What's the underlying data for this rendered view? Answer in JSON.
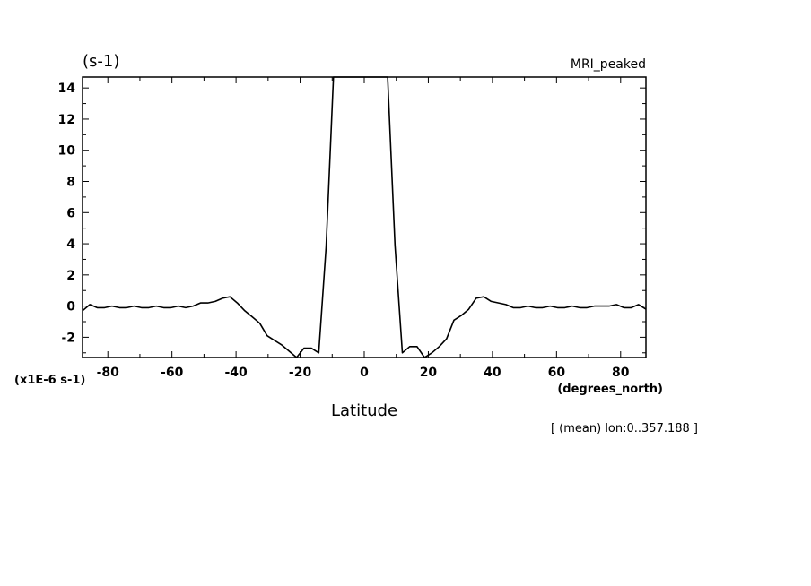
{
  "chart_data": {
    "type": "line",
    "title": "MRI_peaked",
    "unit_label": "(s-1)",
    "scale_label": "(x1E-6 s-1)",
    "xlabel": "Latitude",
    "x_unit": "(degrees_north)",
    "annotation": "[ (mean) lon:0..357.188 ]",
    "xlim": [
      -87.9,
      87.9
    ],
    "ylim": [
      -3.3,
      14.7
    ],
    "x_ticks": [
      -80,
      -60,
      -40,
      -20,
      0,
      20,
      40,
      60,
      80
    ],
    "y_ticks": [
      -2,
      0,
      2,
      4,
      6,
      8,
      10,
      12,
      14
    ],
    "x_tick_labels": [
      "-80",
      "-60",
      "-40",
      "-20",
      "0",
      "20",
      "40",
      "60",
      "80"
    ],
    "y_tick_labels": [
      "-2",
      "0",
      "2",
      "4",
      "6",
      "8",
      "10",
      "12",
      "14"
    ],
    "grid": false,
    "series": [
      {
        "x": [
          -87.9,
          -85.6,
          -83.3,
          -81.0,
          -78.7,
          -76.4,
          -74.1,
          -71.8,
          -69.5,
          -67.2,
          -64.9,
          -62.6,
          -60.3,
          -58.0,
          -55.7,
          -53.4,
          -51.1,
          -48.8,
          -46.5,
          -44.2,
          -41.9,
          -39.6,
          -37.3,
          -34.9,
          -32.6,
          -30.3,
          -28.0,
          -25.7,
          -23.4,
          -21.1,
          -18.8,
          -16.5,
          -14.2,
          -11.9,
          -9.6,
          -7.3,
          -5.0,
          -2.7,
          -0.4,
          0.4,
          2.7,
          5.0,
          7.3,
          9.6,
          11.9,
          14.2,
          16.5,
          18.8,
          21.1,
          23.4,
          25.7,
          28.0,
          30.3,
          32.6,
          34.9,
          37.3,
          39.6,
          41.9,
          44.2,
          46.5,
          48.8,
          51.1,
          53.4,
          55.7,
          58.0,
          60.3,
          62.6,
          64.9,
          67.2,
          69.5,
          71.8,
          74.1,
          76.4,
          78.7,
          81.0,
          83.3,
          85.6,
          87.9
        ],
        "y": [
          -0.3,
          0.1,
          -0.1,
          -0.1,
          0.0,
          -0.1,
          -0.1,
          0.0,
          -0.1,
          -0.1,
          0.0,
          -0.1,
          -0.1,
          0.0,
          -0.1,
          0.0,
          0.2,
          0.2,
          0.3,
          0.5,
          0.6,
          0.2,
          -0.3,
          -0.7,
          -1.1,
          -1.9,
          -2.2,
          -2.5,
          -2.9,
          -3.3,
          -2.7,
          -2.7,
          -3.0,
          3.8,
          14.7,
          14.7,
          14.7,
          14.7,
          14.7,
          14.7,
          14.7,
          14.7,
          14.7,
          3.9,
          -3.0,
          -2.6,
          -2.6,
          -3.3,
          -3.0,
          -2.6,
          -2.1,
          -0.9,
          -0.6,
          -0.2,
          0.5,
          0.6,
          0.3,
          0.2,
          0.1,
          -0.1,
          -0.1,
          0.0,
          -0.1,
          -0.1,
          0.0,
          -0.1,
          -0.1,
          0.0,
          -0.1,
          -0.1,
          0.0,
          0.0,
          0.0,
          0.1,
          -0.1,
          -0.1,
          0.1,
          -0.2
        ]
      }
    ]
  }
}
